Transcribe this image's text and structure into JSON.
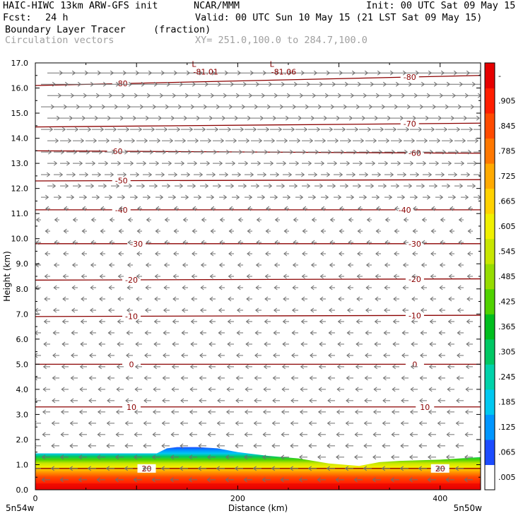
{
  "header": {
    "model": "HAIC-HIWC 13km ARW-GFS init",
    "org": "NCAR/MMM",
    "init": "Init: 00 UTC Sat 09 May 15",
    "fcst_label": "Fcst:",
    "fcst_value": "24 h",
    "valid": "Valid: 00 UTC Sun 10 May 15 (21 LST Sat 09 May 15)",
    "field": "Boundary Layer Tracer",
    "units": "(fraction)",
    "vectors": "Circulation vectors",
    "xy": "XY= 251.0,100.0 to 284.7,100.0"
  },
  "chart_data": {
    "type": "heatmap",
    "xlabel": "Distance (km)",
    "ylabel": "Height (km)",
    "xlim": [
      0,
      440
    ],
    "ylim": [
      0,
      17
    ],
    "x_ticks": [
      {
        "value": 0,
        "label": "0"
      },
      {
        "value": 200,
        "label": "200"
      },
      {
        "value": 400,
        "label": "400"
      }
    ],
    "x_end_labels": {
      "left": "5n54w",
      "right": "5n50w"
    },
    "y_ticks": [
      "0.0",
      "1.0",
      "2.0",
      "3.0",
      "4.0",
      "5.0",
      "6.0",
      "7.0",
      "8.0",
      "9.0",
      "10.0",
      "11.0",
      "12.0",
      "13.0",
      "14.0",
      "15.0",
      "16.0",
      "17.0"
    ],
    "colorbar": {
      "labels": [
        ".005",
        ".065",
        ".125",
        ".185",
        ".245",
        ".305",
        ".365",
        ".425",
        ".485",
        ".545",
        ".605",
        ".665",
        ".725",
        ".785",
        ".845",
        ".905",
        "-"
      ],
      "colors": [
        "#ffffff",
        "#1c4cff",
        "#0096ff",
        "#00c8f0",
        "#00d2aa",
        "#00c864",
        "#00be1e",
        "#50d200",
        "#96dc00",
        "#c8e600",
        "#f0f000",
        "#ffd200",
        "#ffaa00",
        "#ff7800",
        "#ff4b00",
        "#ff1e00",
        "#e60000"
      ]
    },
    "tracer_layer": {
      "x": [
        0,
        40,
        80,
        120,
        130,
        140,
        160,
        180,
        200,
        230,
        260,
        290,
        320,
        340,
        360,
        400,
        440
      ],
      "top_height": [
        1.45,
        1.45,
        1.45,
        1.45,
        1.65,
        1.7,
        1.7,
        1.65,
        1.5,
        1.35,
        1.25,
        1.05,
        0.95,
        1.1,
        1.15,
        1.2,
        1.3
      ]
    },
    "temperature_contours": [
      {
        "value": 20,
        "labels": [
          {
            "x": 110,
            "label": "20"
          },
          {
            "x": 400,
            "label": "20"
          }
        ],
        "heights": [
          0.85,
          0.85
        ]
      },
      {
        "value": 10,
        "labels": [
          {
            "x": 95,
            "label": "10"
          },
          {
            "x": 385,
            "label": "10"
          }
        ],
        "heights": [
          3.3,
          3.3
        ]
      },
      {
        "value": 0,
        "labels": [
          {
            "x": 95,
            "label": "0"
          },
          {
            "x": 375,
            "label": "0"
          }
        ],
        "heights": [
          5.0,
          5.0
        ]
      },
      {
        "value": -10,
        "labels": [
          {
            "x": 95,
            "label": "-10"
          },
          {
            "x": 375,
            "label": "-10"
          }
        ],
        "heights": [
          6.9,
          6.95
        ]
      },
      {
        "value": -20,
        "labels": [
          {
            "x": 95,
            "label": "-20"
          },
          {
            "x": 375,
            "label": "-20"
          }
        ],
        "heights": [
          8.35,
          8.4
        ]
      },
      {
        "value": -30,
        "labels": [
          {
            "x": 100,
            "label": "-30"
          },
          {
            "x": 375,
            "label": "-30"
          }
        ],
        "heights": [
          9.8,
          9.8
        ]
      },
      {
        "value": -40,
        "labels": [
          {
            "x": 85,
            "label": "-40"
          },
          {
            "x": 365,
            "label": "-40"
          }
        ],
        "heights": [
          11.15,
          11.15
        ]
      },
      {
        "value": -50,
        "labels": [
          {
            "x": 85,
            "label": "-50"
          }
        ],
        "heights": [
          12.3,
          12.35
        ]
      },
      {
        "value": -60,
        "labels": [
          {
            "x": 80,
            "label": "-60"
          },
          {
            "x": 375,
            "label": "-60"
          }
        ],
        "heights": [
          13.5,
          13.4
        ]
      },
      {
        "value": -70,
        "labels": [
          {
            "x": 370,
            "label": "-70"
          }
        ],
        "heights": [
          14.45,
          14.6
        ]
      },
      {
        "value": -80,
        "labels": [
          {
            "x": 85,
            "label": "-80"
          },
          {
            "x": 370,
            "label": "-80"
          }
        ],
        "heights": [
          16.1,
          16.5
        ]
      }
    ],
    "minima": [
      {
        "x": 163,
        "height": 16.9,
        "symbol": "L",
        "label": "-81.01"
      },
      {
        "x": 240,
        "height": 16.9,
        "symbol": "L",
        "label": "-81.06"
      }
    ],
    "vectors": {
      "upper_direction": "east",
      "lower_direction": "west",
      "transition_height": 11.5
    }
  }
}
